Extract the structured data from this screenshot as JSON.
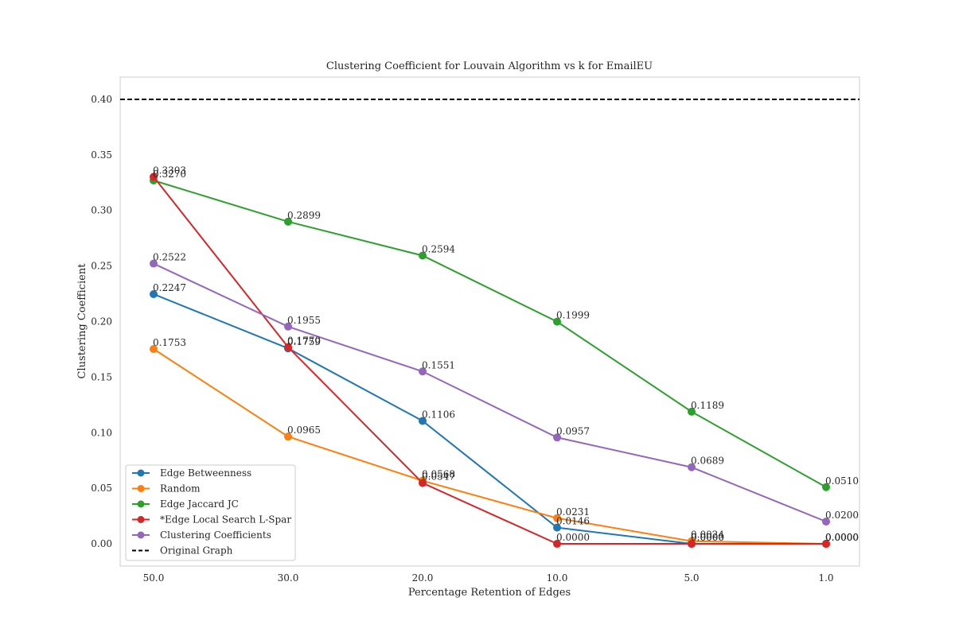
{
  "chart_data": {
    "type": "line",
    "title": "Clustering Coefficient for Louvain Algorithm vs k for EmailEU",
    "xlabel": "Percentage Retention of Edges",
    "ylabel": "Clustering Coefficient",
    "categories": [
      "50.0",
      "30.0",
      "20.0",
      "10.0",
      "5.0",
      "1.0"
    ],
    "ylim": [
      -0.02,
      0.42
    ],
    "yticks": [
      "0.00",
      "0.05",
      "0.10",
      "0.15",
      "0.20",
      "0.25",
      "0.30",
      "0.35",
      "0.40"
    ],
    "grid": false,
    "legend_position": "lower-left",
    "series": [
      {
        "name": "Edge Betweenness",
        "color": "#1f77b4",
        "values": [
          0.2247,
          0.1759,
          0.1106,
          0.0146,
          0.0,
          0.0
        ],
        "labels": [
          "0.2247",
          "0.1759",
          "0.1106",
          "0.0146",
          "0.0000",
          "0.0000"
        ]
      },
      {
        "name": "Random",
        "color": "#ff7f0e",
        "values": [
          0.1753,
          0.0965,
          0.0568,
          0.0231,
          0.0024,
          0.0
        ],
        "labels": [
          "0.1753",
          "0.0965",
          "0.0568",
          "0.0231",
          "0.0024",
          "0.0000"
        ]
      },
      {
        "name": "Edge Jaccard JC",
        "color": "#2ca02c",
        "values": [
          0.327,
          0.2899,
          0.2594,
          0.1999,
          0.1189,
          0.051
        ],
        "labels": [
          "0.3270",
          "0.2899",
          "0.2594",
          "0.1999",
          "0.1189",
          "0.0510"
        ]
      },
      {
        "name": "*Edge Local Search L-Spar",
        "color": "#d62728",
        "values": [
          0.3303,
          0.177,
          0.0547,
          0.0,
          0.0,
          0.0
        ],
        "labels": [
          "0.3303",
          "0.1770",
          "0.0547",
          "0.0000",
          "0.0000",
          "0.0000"
        ]
      },
      {
        "name": "Clustering Coefficients",
        "color": "#9467bd",
        "values": [
          0.2522,
          0.1955,
          0.1551,
          0.0957,
          0.0689,
          0.02
        ],
        "labels": [
          "0.2522",
          "0.1955",
          "0.1551",
          "0.0957",
          "0.0689",
          "0.0200"
        ]
      }
    ],
    "reference_line": {
      "name": "Original Graph",
      "value": 0.4,
      "color": "#000000",
      "style": "dashed"
    }
  }
}
